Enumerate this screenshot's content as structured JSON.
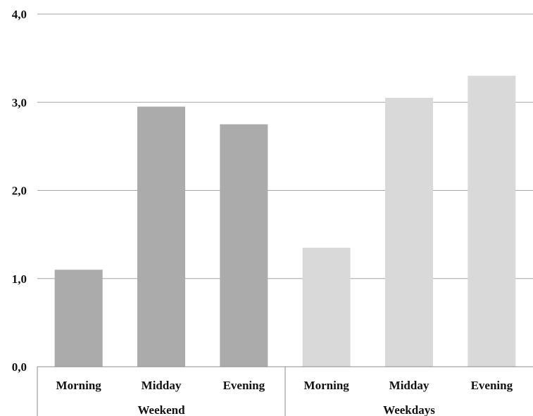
{
  "chart_data": {
    "type": "bar",
    "ylim": [
      0,
      4
    ],
    "y_ticks": [
      "0,0",
      "1,0",
      "2,0",
      "3,0",
      "4,0"
    ],
    "y_tick_values": [
      0,
      1,
      2,
      3,
      4
    ],
    "grid": true,
    "groups": [
      {
        "name": "Weekend",
        "color": "#ababab",
        "categories": [
          "Morning",
          "Midday",
          "Evening"
        ],
        "values": [
          1.1,
          2.95,
          2.75
        ]
      },
      {
        "name": "Weekdays",
        "color": "#d9d9d9",
        "categories": [
          "Morning",
          "Midday",
          "Evening"
        ],
        "values": [
          1.35,
          3.05,
          3.3
        ]
      }
    ]
  }
}
